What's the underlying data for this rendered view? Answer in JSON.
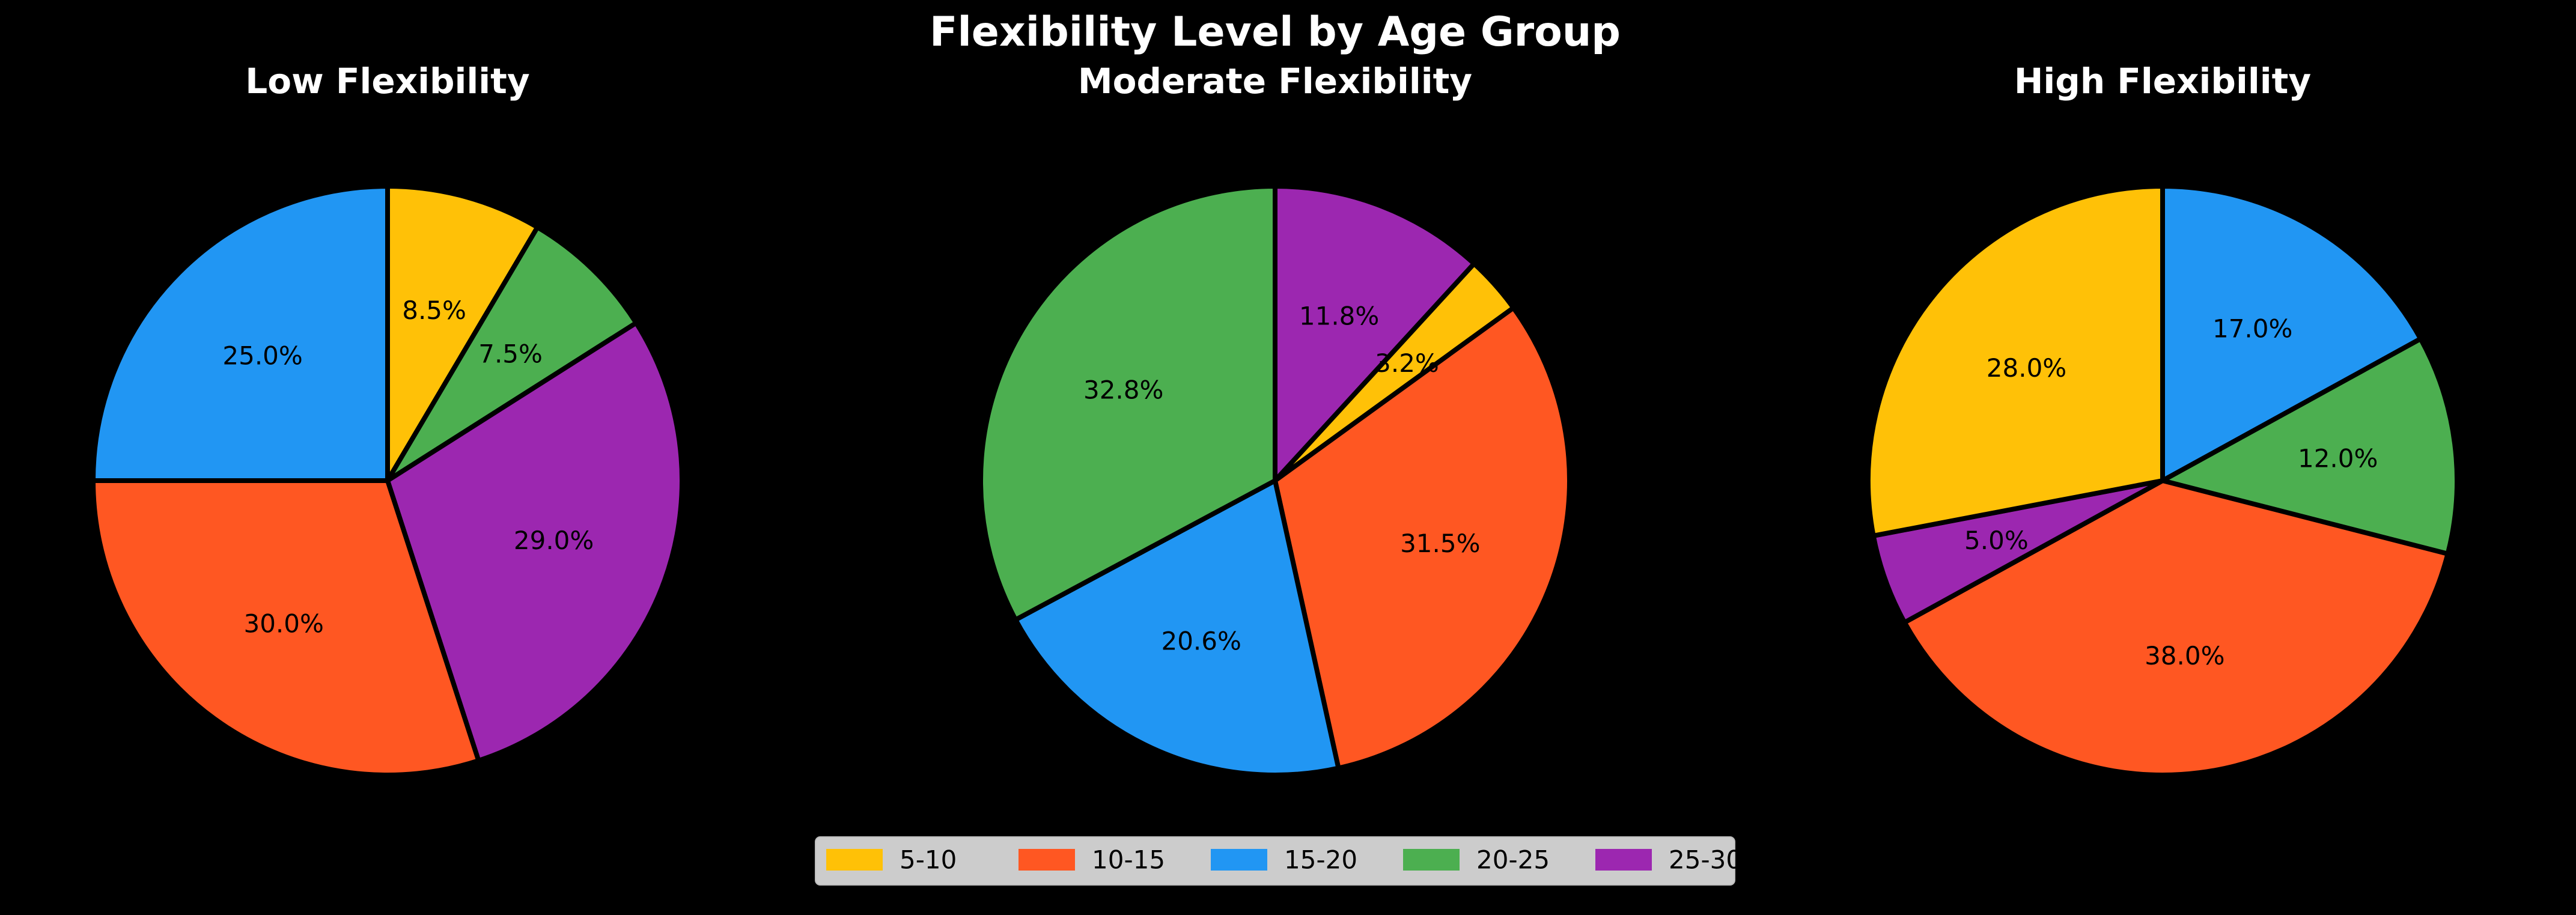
{
  "chart_data": {
    "type": "pie",
    "title": "Flexibility Level by Age Group",
    "categories": [
      "5-10",
      "10-15",
      "15-20",
      "20-25",
      "25-30"
    ],
    "colors": {
      "5-10": "#FFC107",
      "10-15": "#FF5722",
      "15-20": "#2196F3",
      "20-25": "#4CAF50",
      "25-30": "#9C27B0"
    },
    "legend": {
      "placement": "bottom-center",
      "entries": [
        "5-10",
        "10-15",
        "15-20",
        "20-25",
        "25-30"
      ]
    },
    "charts": [
      {
        "title": "Low Flexibility",
        "slices": [
          {
            "category": "5-10",
            "value": 8.5,
            "label": "8.5%"
          },
          {
            "category": "20-25",
            "value": 7.5,
            "label": "7.5%"
          },
          {
            "category": "25-30",
            "value": 29.0,
            "label": "29.0%"
          },
          {
            "category": "10-15",
            "value": 30.0,
            "label": "30.0%"
          },
          {
            "category": "15-20",
            "value": 25.0,
            "label": "25.0%"
          }
        ]
      },
      {
        "title": "Moderate Flexibility",
        "slices": [
          {
            "category": "25-30",
            "value": 11.8,
            "label": "11.8%"
          },
          {
            "category": "5-10",
            "value": 3.2,
            "label": "3.2%"
          },
          {
            "category": "10-15",
            "value": 31.5,
            "label": "31.5%"
          },
          {
            "category": "15-20",
            "value": 20.6,
            "label": "20.6%"
          },
          {
            "category": "20-25",
            "value": 32.8,
            "label": "32.8%"
          }
        ]
      },
      {
        "title": "High Flexibility",
        "slices": [
          {
            "category": "15-20",
            "value": 17.0,
            "label": "17.0%"
          },
          {
            "category": "20-25",
            "value": 12.0,
            "label": "12.0%"
          },
          {
            "category": "10-15",
            "value": 38.0,
            "label": "38.0%"
          },
          {
            "category": "25-30",
            "value": 5.0,
            "label": "5.0%"
          },
          {
            "category": "5-10",
            "value": 28.0,
            "label": "28.0%"
          }
        ]
      }
    ]
  }
}
